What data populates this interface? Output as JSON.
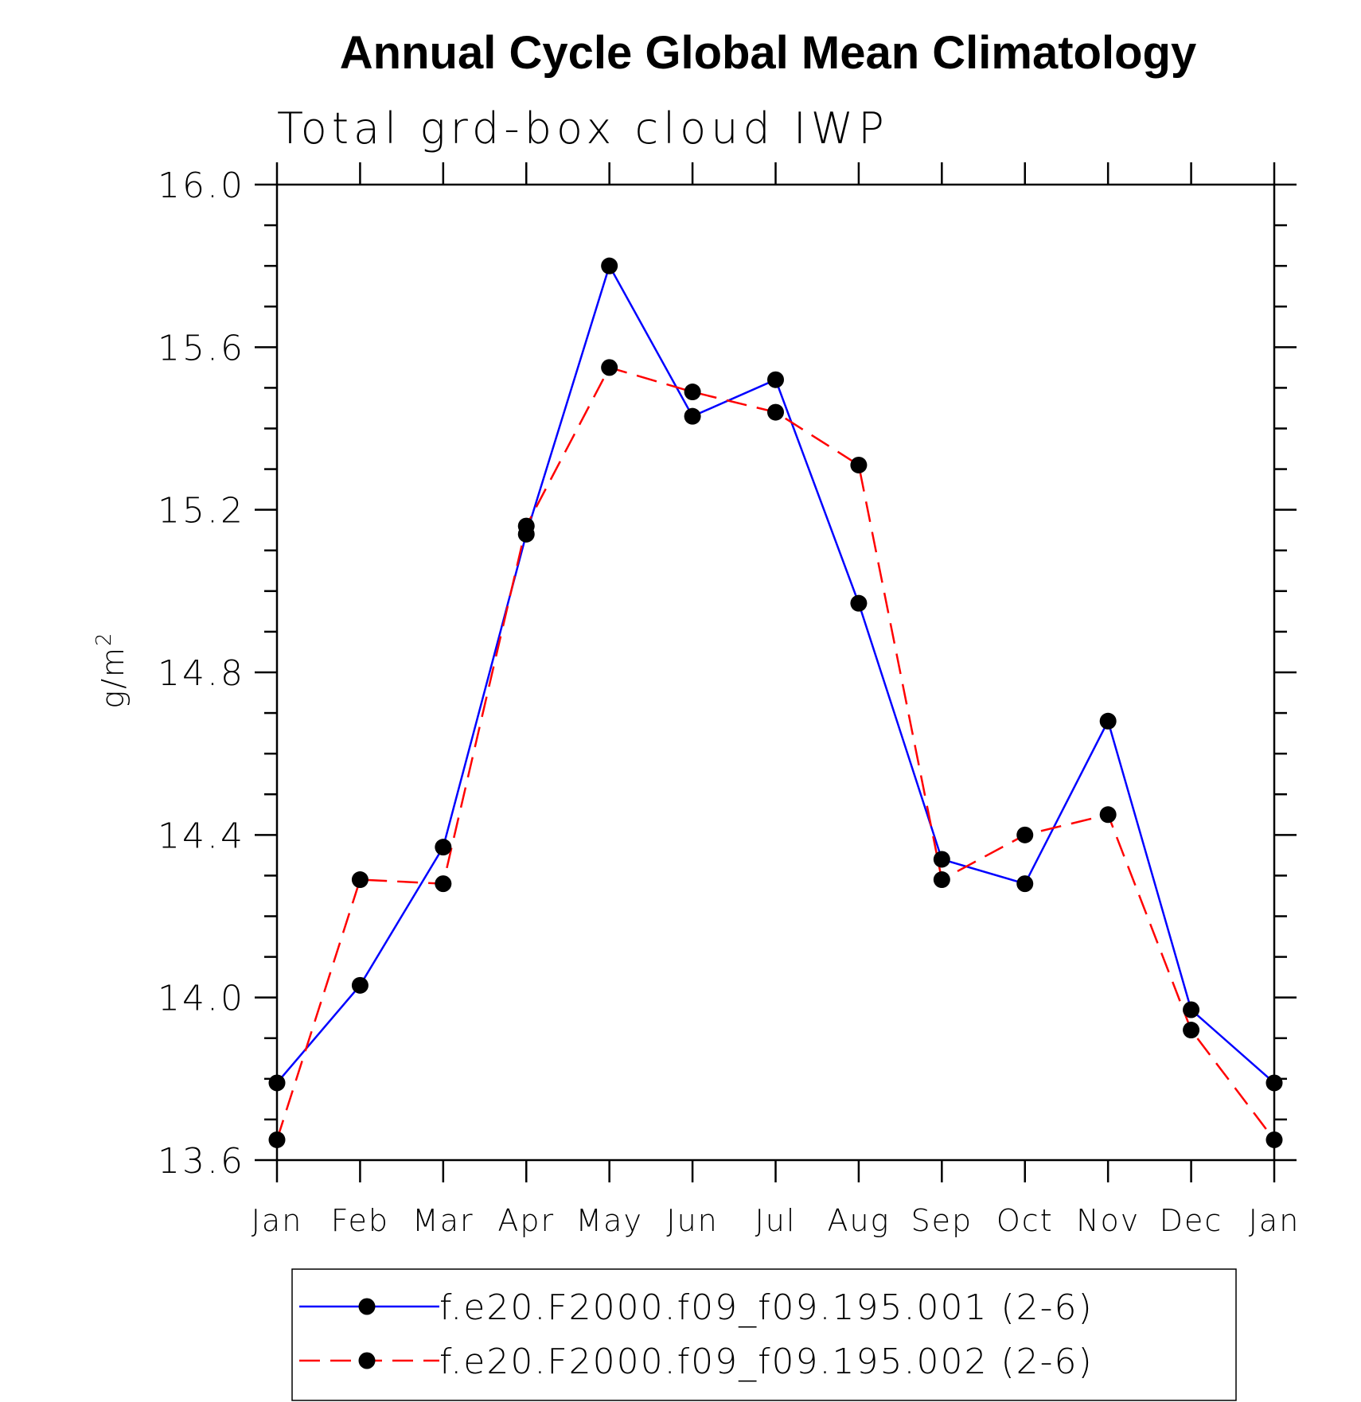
{
  "chart_data": {
    "type": "line",
    "title": "Annual Cycle Global Mean Climatology",
    "subtitle": "Total grd-box cloud IWP",
    "xlabel": "",
    "ylabel": "g/m",
    "ylabel_superscript": "2",
    "categories": [
      "Jan",
      "Feb",
      "Mar",
      "Apr",
      "May",
      "Jun",
      "Jul",
      "Aug",
      "Sep",
      "Oct",
      "Nov",
      "Dec",
      "Jan"
    ],
    "ylim": [
      13.6,
      16.0
    ],
    "y_major_ticks": [
      13.6,
      14.0,
      14.4,
      14.8,
      15.2,
      15.6,
      16.0
    ],
    "y_tick_labels": [
      "13.6",
      "14.0",
      "14.4",
      "14.8",
      "15.2",
      "15.6",
      "16.0"
    ],
    "y_minor_step": 0.1,
    "series": [
      {
        "name": "f.e20.F2000.f09_f09.195.001 (2-6)",
        "color": "#0000ff",
        "dash": "solid",
        "values": [
          13.79,
          14.03,
          14.37,
          15.14,
          15.8,
          15.43,
          15.52,
          14.97,
          14.34,
          14.28,
          14.68,
          13.97,
          13.79
        ]
      },
      {
        "name": "f.e20.F2000.f09_f09.195.002 (2-6)",
        "color": "#ff0000",
        "dash": "dashed",
        "values": [
          13.65,
          14.29,
          14.28,
          15.16,
          15.55,
          15.49,
          15.44,
          15.31,
          14.29,
          14.4,
          14.45,
          13.92,
          13.65
        ]
      }
    ],
    "marker_color": "#000000",
    "legend_position": "bottom"
  }
}
